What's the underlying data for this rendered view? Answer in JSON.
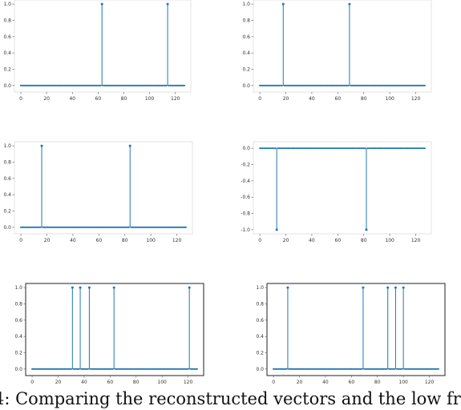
{
  "chart_data": [
    {
      "type": "stem",
      "xlim": [
        -5,
        132
      ],
      "ylim": [
        -0.08,
        1.05
      ],
      "xticks": [
        0,
        20,
        40,
        60,
        80,
        100,
        120
      ],
      "yticks": [
        0.0,
        0.2,
        0.4,
        0.6,
        0.8,
        1.0
      ],
      "xtick_labels": [
        "0",
        "20",
        "40",
        "60",
        "80",
        "100",
        "120"
      ],
      "ytick_labels": [
        "0.0",
        "0.2",
        "0.4",
        "0.6",
        "0.8",
        "1.0"
      ],
      "n_points": 128,
      "spikes": [
        {
          "x": 63,
          "y": 1.0
        },
        {
          "x": 114,
          "y": 1.0
        }
      ],
      "marker_color": "#1f77b4",
      "baseline_color": "#d62728",
      "grid": false
    },
    {
      "type": "stem",
      "xlim": [
        -5,
        132
      ],
      "ylim": [
        -0.08,
        1.05
      ],
      "xticks": [
        0,
        20,
        40,
        60,
        80,
        100,
        120
      ],
      "yticks": [
        0.0,
        0.2,
        0.4,
        0.6,
        0.8,
        1.0
      ],
      "xtick_labels": [
        "0",
        "20",
        "40",
        "60",
        "80",
        "100",
        "120"
      ],
      "ytick_labels": [
        "0.0",
        "0.2",
        "0.4",
        "0.6",
        "0.8",
        "1.0"
      ],
      "n_points": 128,
      "spikes": [
        {
          "x": 18,
          "y": 1.0
        },
        {
          "x": 69,
          "y": 1.0
        }
      ],
      "marker_color": "#1f77b4",
      "baseline_color": "#d62728",
      "grid": false
    },
    {
      "type": "stem",
      "xlim": [
        -5,
        132
      ],
      "ylim": [
        -0.08,
        1.05
      ],
      "xticks": [
        0,
        20,
        40,
        60,
        80,
        100,
        120
      ],
      "yticks": [
        0.0,
        0.2,
        0.4,
        0.6,
        0.8,
        1.0
      ],
      "xtick_labels": [
        "0",
        "20",
        "40",
        "60",
        "80",
        "100",
        "120"
      ],
      "ytick_labels": [
        "0.0",
        "0.2",
        "0.4",
        "0.6",
        "0.8",
        "1.0"
      ],
      "n_points": 128,
      "spikes": [
        {
          "x": 16,
          "y": 1.0
        },
        {
          "x": 84,
          "y": 1.0
        }
      ],
      "marker_color": "#1f77b4",
      "baseline_color": "#d62728",
      "grid": false
    },
    {
      "type": "stem",
      "xlim": [
        -5,
        132
      ],
      "ylim": [
        -1.05,
        0.08
      ],
      "xticks": [
        0,
        20,
        40,
        60,
        80,
        100,
        120
      ],
      "yticks": [
        0.0,
        -0.2,
        -0.4,
        -0.6,
        -0.8,
        -1.0
      ],
      "xtick_labels": [
        "0",
        "20",
        "40",
        "60",
        "80",
        "100",
        "120"
      ],
      "ytick_labels": [
        "0.0",
        "-0.2",
        "-0.4",
        "-0.6",
        "-0.8",
        "-1.0"
      ],
      "n_points": 128,
      "spikes": [
        {
          "x": 13,
          "y": -1.0
        },
        {
          "x": 82,
          "y": -1.0
        }
      ],
      "marker_color": "#1f77b4",
      "baseline_color": "#d62728",
      "grid": false
    },
    {
      "type": "stem",
      "xlim": [
        -5,
        132
      ],
      "ylim": [
        -0.08,
        1.05
      ],
      "xticks": [
        0,
        20,
        40,
        60,
        80,
        100,
        120
      ],
      "yticks": [
        0.0,
        0.2,
        0.4,
        0.6,
        0.8,
        1.0
      ],
      "xtick_labels": [
        "0",
        "20",
        "40",
        "60",
        "80",
        "100",
        "120"
      ],
      "ytick_labels": [
        "0.0",
        "0.2",
        "0.4",
        "0.6",
        "0.8",
        "1.0"
      ],
      "n_points": 128,
      "spikes": [
        {
          "x": 31,
          "y": 1.0
        },
        {
          "x": 37,
          "y": 1.0
        },
        {
          "x": 44,
          "y": 1.0
        },
        {
          "x": 63,
          "y": 1.0
        },
        {
          "x": 121,
          "y": 1.0
        }
      ],
      "marker_color": "#1f77b4",
      "baseline_color": "#d62728",
      "grid": false
    },
    {
      "type": "stem",
      "xlim": [
        -5,
        132
      ],
      "ylim": [
        -0.08,
        1.05
      ],
      "xticks": [
        0,
        20,
        40,
        60,
        80,
        100,
        120
      ],
      "yticks": [
        0.0,
        0.2,
        0.4,
        0.6,
        0.8,
        1.0
      ],
      "xtick_labels": [
        "0",
        "20",
        "40",
        "60",
        "80",
        "100",
        "120"
      ],
      "ytick_labels": [
        "0.0",
        "0.2",
        "0.4",
        "0.6",
        "0.8",
        "1.0"
      ],
      "n_points": 128,
      "spikes": [
        {
          "x": 11,
          "y": 1.0
        },
        {
          "x": 69,
          "y": 1.0
        },
        {
          "x": 88,
          "y": 1.0
        },
        {
          "x": 94,
          "y": 1.0
        },
        {
          "x": 100,
          "y": 1.0
        }
      ],
      "marker_color": "#1f77b4",
      "baseline_color": "#d62728",
      "grid": false
    }
  ],
  "caption": "4: Comparing the reconstructed vectors and the low fr"
}
